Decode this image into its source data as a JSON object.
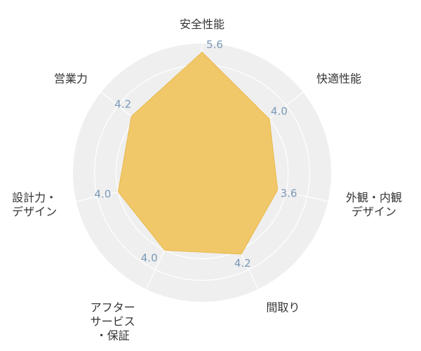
{
  "chart_data": {
    "type": "radar",
    "title": "",
    "rmax": 6,
    "ring_count": 6,
    "grid": true,
    "fill_color": "#f0c35a",
    "fill_stroke": "#eab84a",
    "background_color": "#efefef",
    "grid_color": "#ffffff",
    "value_label_color": "#7a98b8",
    "axes": [
      {
        "lines": [
          "安全性能"
        ],
        "value": 5.6,
        "value_label": "5.6"
      },
      {
        "lines": [
          "快適性能"
        ],
        "value": 4.0,
        "value_label": "4.0"
      },
      {
        "lines": [
          "外観・内観",
          "デザイン"
        ],
        "value": 3.6,
        "value_label": "3.6"
      },
      {
        "lines": [
          "間取り"
        ],
        "value": 4.2,
        "value_label": "4.2"
      },
      {
        "lines": [
          "アフター",
          "サービス",
          "・保証"
        ],
        "value": 4.0,
        "value_label": "4.0"
      },
      {
        "lines": [
          "設計力・",
          "デザイン"
        ],
        "value": 4.0,
        "value_label": "4.0"
      },
      {
        "lines": [
          "営業力"
        ],
        "value": 4.2,
        "value_label": "4.2"
      }
    ]
  }
}
